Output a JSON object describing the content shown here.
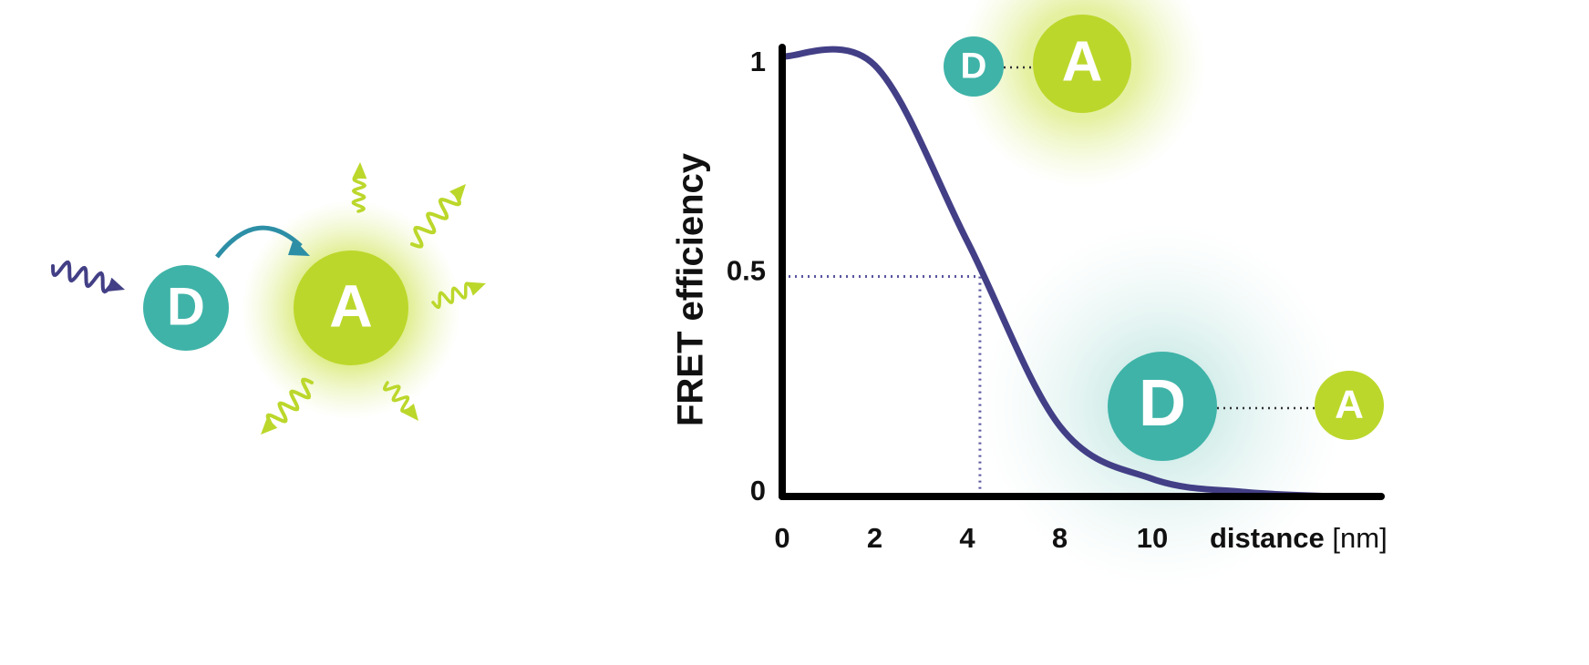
{
  "diagram": {
    "donor": "D",
    "acceptor": "A"
  },
  "chart_data": {
    "type": "line",
    "y_label": "FRET efficiency",
    "x_label": "distance",
    "x_unit": "[nm]",
    "categories": [
      "0",
      "2",
      "4",
      "8",
      "10",
      null,
      null
    ],
    "series": [
      {
        "name": null,
        "color": "#433f86",
        "values": [
          1,
          0.98,
          0.58,
          0.16,
          0.04,
          0.01,
          0
        ]
      }
    ],
    "ylim": [
      0,
      1
    ],
    "yticks": [
      0,
      0.5,
      1
    ],
    "half_line_color": "#5a57a0"
  },
  "close_pair": {
    "donor": "D",
    "acceptor": "A"
  },
  "far_pair": {
    "donor": "D",
    "acceptor": "A"
  }
}
